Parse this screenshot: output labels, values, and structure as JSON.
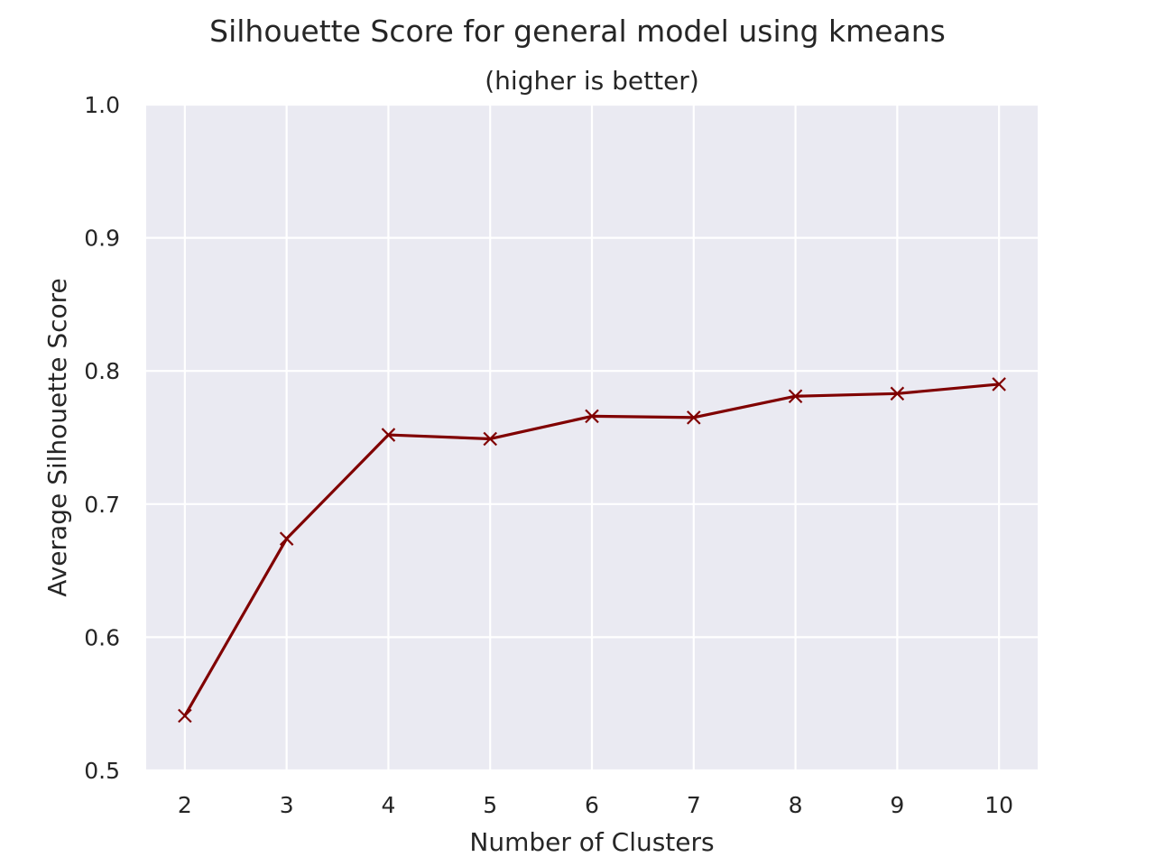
{
  "colors": {
    "page_background": "#ffffff",
    "plot_background": "#eaeaf2",
    "grid": "#ffffff",
    "series_line": "#800000",
    "text": "#262626"
  },
  "chart_data": {
    "type": "line",
    "title": "Silhouette Score for general model using kmeans",
    "subtitle": "(higher is better)",
    "xlabel": "Number of Clusters",
    "ylabel": "Average Silhouette Score",
    "x": [
      2,
      3,
      4,
      5,
      6,
      7,
      8,
      9,
      10
    ],
    "xticks": [
      "2",
      "3",
      "4",
      "5",
      "6",
      "7",
      "8",
      "9",
      "10"
    ],
    "yticks": [
      "0.5",
      "0.6",
      "0.7",
      "0.8",
      "0.9",
      "1.0"
    ],
    "xlim": [
      1.62,
      10.38
    ],
    "ylim": [
      0.5,
      1.0
    ],
    "grid": true,
    "series": [
      {
        "marker": "x",
        "color": "#800000",
        "values": [
          0.541,
          0.674,
          0.752,
          0.749,
          0.766,
          0.765,
          0.781,
          0.783,
          0.79
        ]
      }
    ]
  }
}
